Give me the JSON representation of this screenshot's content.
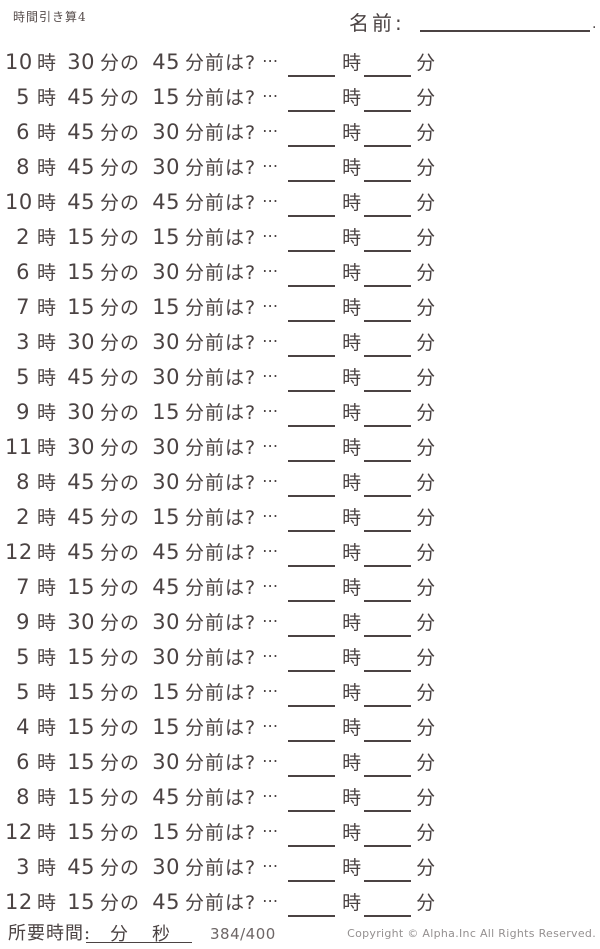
{
  "header": {
    "title": "時間引き算4",
    "name_label": "名前:",
    "name_line_end": "."
  },
  "labels": {
    "hour_unit": "時",
    "minute_unit": "分",
    "minute_particle": "分の",
    "question_suffix": "分前は?",
    "ellipsis": "…"
  },
  "problems": [
    {
      "hour": "10",
      "minute": "30",
      "before": "45"
    },
    {
      "hour": "5",
      "minute": "45",
      "before": "15"
    },
    {
      "hour": "6",
      "minute": "45",
      "before": "30"
    },
    {
      "hour": "8",
      "minute": "45",
      "before": "30"
    },
    {
      "hour": "10",
      "minute": "45",
      "before": "45"
    },
    {
      "hour": "2",
      "minute": "15",
      "before": "15"
    },
    {
      "hour": "6",
      "minute": "15",
      "before": "30"
    },
    {
      "hour": "7",
      "minute": "15",
      "before": "15"
    },
    {
      "hour": "3",
      "minute": "30",
      "before": "30"
    },
    {
      "hour": "5",
      "minute": "45",
      "before": "30"
    },
    {
      "hour": "9",
      "minute": "30",
      "before": "15"
    },
    {
      "hour": "11",
      "minute": "30",
      "before": "30"
    },
    {
      "hour": "8",
      "minute": "45",
      "before": "30"
    },
    {
      "hour": "2",
      "minute": "45",
      "before": "15"
    },
    {
      "hour": "12",
      "minute": "45",
      "before": "45"
    },
    {
      "hour": "7",
      "minute": "15",
      "before": "45"
    },
    {
      "hour": "9",
      "minute": "30",
      "before": "30"
    },
    {
      "hour": "5",
      "minute": "15",
      "before": "30"
    },
    {
      "hour": "5",
      "minute": "15",
      "before": "15"
    },
    {
      "hour": "4",
      "minute": "15",
      "before": "15"
    },
    {
      "hour": "6",
      "minute": "15",
      "before": "30"
    },
    {
      "hour": "8",
      "minute": "15",
      "before": "45"
    },
    {
      "hour": "12",
      "minute": "15",
      "before": "15"
    },
    {
      "hour": "3",
      "minute": "45",
      "before": "30"
    },
    {
      "hour": "12",
      "minute": "15",
      "before": "45"
    }
  ],
  "footer": {
    "time_label": "所要時間:",
    "minutes_unit": "分",
    "seconds_unit": "秒",
    "progress": "384/400",
    "copyright": "Copyright ©  Alpha.Inc All Rights Reserved.",
    "text_color": "#4b4343",
    "muted_color": "#949090"
  }
}
